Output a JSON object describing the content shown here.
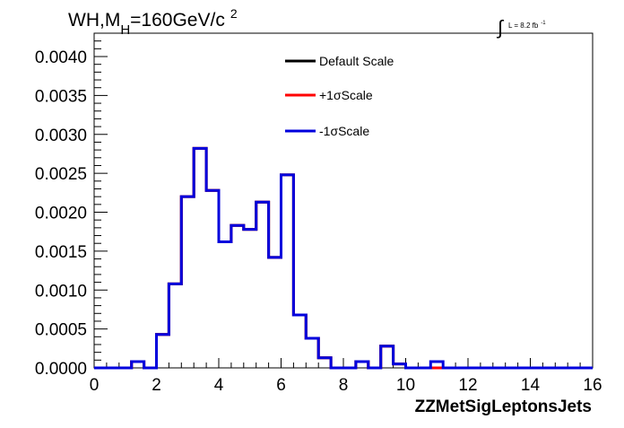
{
  "header": {
    "title_prefix": "WH,M",
    "title_sub": "H",
    "title_main": "=160GeV/c",
    "title_sup": "2",
    "lumi_symbol": "∫",
    "lumi_text": "L = 8.2 fb",
    "lumi_sup": "-1"
  },
  "chart_data": {
    "type": "line",
    "style": "step-histogram",
    "xlabel": "ZZMetSigLeptonsJets",
    "ylabel": "",
    "xlim": [
      0,
      16
    ],
    "ylim": [
      0,
      0.0043
    ],
    "x_ticks": [
      0,
      2,
      4,
      6,
      8,
      10,
      12,
      14,
      16
    ],
    "x_tick_labels": [
      "0",
      "2",
      "4",
      "6",
      "8",
      "10",
      "12",
      "14",
      "16"
    ],
    "y_ticks": [
      0.0,
      0.0005,
      0.001,
      0.0015,
      0.002,
      0.0025,
      0.003,
      0.0035,
      0.004
    ],
    "y_tick_labels": [
      "0.0000",
      "0.0005",
      "0.0010",
      "0.0015",
      "0.0020",
      "0.0025",
      "0.0030",
      "0.0035",
      "0.0040"
    ],
    "grid": false,
    "legend_position": "top-right",
    "bin_width": 0.4,
    "bin_edges_start": 0,
    "series": [
      {
        "name": "Default Scale",
        "color": "#000000",
        "values": [
          0,
          0,
          0,
          8e-05,
          0,
          0.00043,
          0.00108,
          0.0022,
          0.00282,
          0.00228,
          0.00162,
          0.00183,
          0.00178,
          0.00213,
          0.00142,
          0.00248,
          0.00068,
          0.00038,
          0.00013,
          0,
          0,
          8e-05,
          0,
          0.00028,
          5e-05,
          0,
          0,
          0,
          0,
          0,
          0,
          0,
          0,
          0,
          0,
          0,
          0,
          0,
          0,
          0
        ]
      },
      {
        "name": "+1σScale",
        "color": "#ff0000",
        "values": [
          0,
          0,
          0,
          8e-05,
          0,
          0.00043,
          0.00108,
          0.0022,
          0.00282,
          0.00228,
          0.00162,
          0.00183,
          0.00178,
          0.00213,
          0.00142,
          0.00248,
          0.00068,
          0.00038,
          0.00013,
          0,
          0,
          8e-05,
          0,
          0.00028,
          5e-05,
          0,
          0,
          0,
          0,
          0,
          0,
          0,
          0,
          0,
          0,
          0,
          0,
          0,
          0,
          0
        ]
      },
      {
        "name": "-1σScale",
        "color": "#0000dd",
        "values": [
          0,
          0,
          0,
          8e-05,
          0,
          0.00043,
          0.00108,
          0.0022,
          0.00282,
          0.00228,
          0.00162,
          0.00183,
          0.00178,
          0.00213,
          0.00142,
          0.00248,
          0.00068,
          0.00038,
          0.00013,
          0,
          0,
          8e-05,
          0,
          0.00028,
          5e-05,
          0,
          0,
          8e-05,
          0,
          0,
          0,
          0,
          0,
          0,
          0,
          0,
          0,
          0,
          0,
          0
        ]
      }
    ]
  }
}
